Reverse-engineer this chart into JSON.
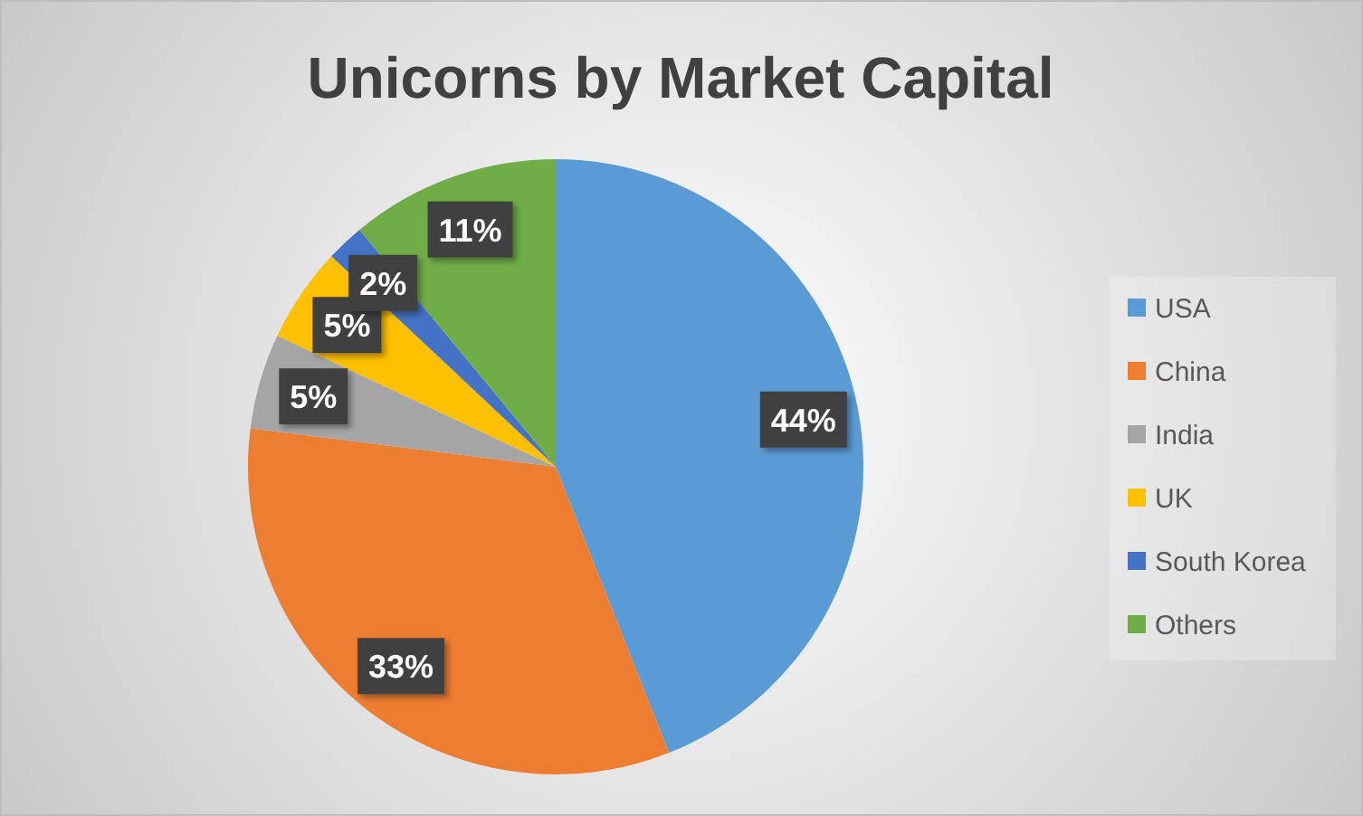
{
  "chart_data": {
    "type": "pie",
    "title": "Unicorns by Market Capital",
    "categories": [
      "USA",
      "China",
      "India",
      "UK",
      "South Korea",
      "Others"
    ],
    "values": [
      44,
      33,
      5,
      5,
      2,
      11
    ],
    "colors": [
      "#5b9bd5",
      "#ed7d31",
      "#a5a5a5",
      "#ffc000",
      "#4472c4",
      "#70ad47"
    ],
    "value_labels": [
      "44%",
      "33%",
      "5%",
      "5%",
      "2%",
      "11%"
    ],
    "legend": "right"
  }
}
